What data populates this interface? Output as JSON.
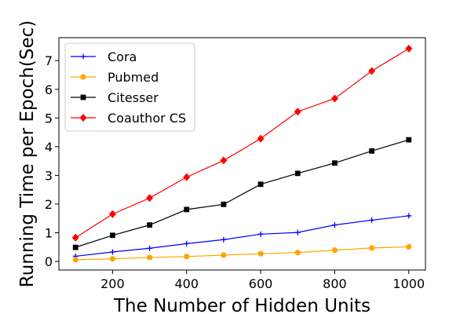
{
  "chart_data": {
    "type": "line",
    "title": "",
    "xlabel": "The Number of Hidden Units",
    "ylabel": "Running Time per Epoch(Sec)",
    "x": [
      100,
      200,
      300,
      400,
      500,
      600,
      700,
      800,
      900,
      1000
    ],
    "xlim": [
      55,
      1045
    ],
    "ylim": [
      -0.3,
      7.8
    ],
    "xticks": [
      200,
      400,
      600,
      800,
      1000
    ],
    "yticks": [
      0,
      1,
      2,
      3,
      4,
      5,
      6,
      7
    ],
    "grid": false,
    "legend_position": "top-left",
    "series": [
      {
        "name": "Cora",
        "color": "#0000ff",
        "marker": "plus",
        "values": [
          0.18,
          0.33,
          0.46,
          0.62,
          0.76,
          0.95,
          1.01,
          1.27,
          1.44,
          1.59
        ]
      },
      {
        "name": "Pubmed",
        "color": "#ffa500",
        "marker": "circle",
        "values": [
          0.06,
          0.09,
          0.14,
          0.17,
          0.22,
          0.27,
          0.31,
          0.39,
          0.47,
          0.51
        ]
      },
      {
        "name": "Citesser",
        "color": "#000000",
        "marker": "square",
        "values": [
          0.49,
          0.91,
          1.27,
          1.81,
          1.99,
          2.69,
          3.07,
          3.43,
          3.85,
          4.24
        ]
      },
      {
        "name": "Coauthor CS",
        "color": "#ff0000",
        "marker": "diamond",
        "values": [
          0.83,
          1.65,
          2.21,
          2.94,
          3.52,
          4.28,
          5.22,
          5.68,
          6.64,
          7.42
        ]
      }
    ]
  }
}
